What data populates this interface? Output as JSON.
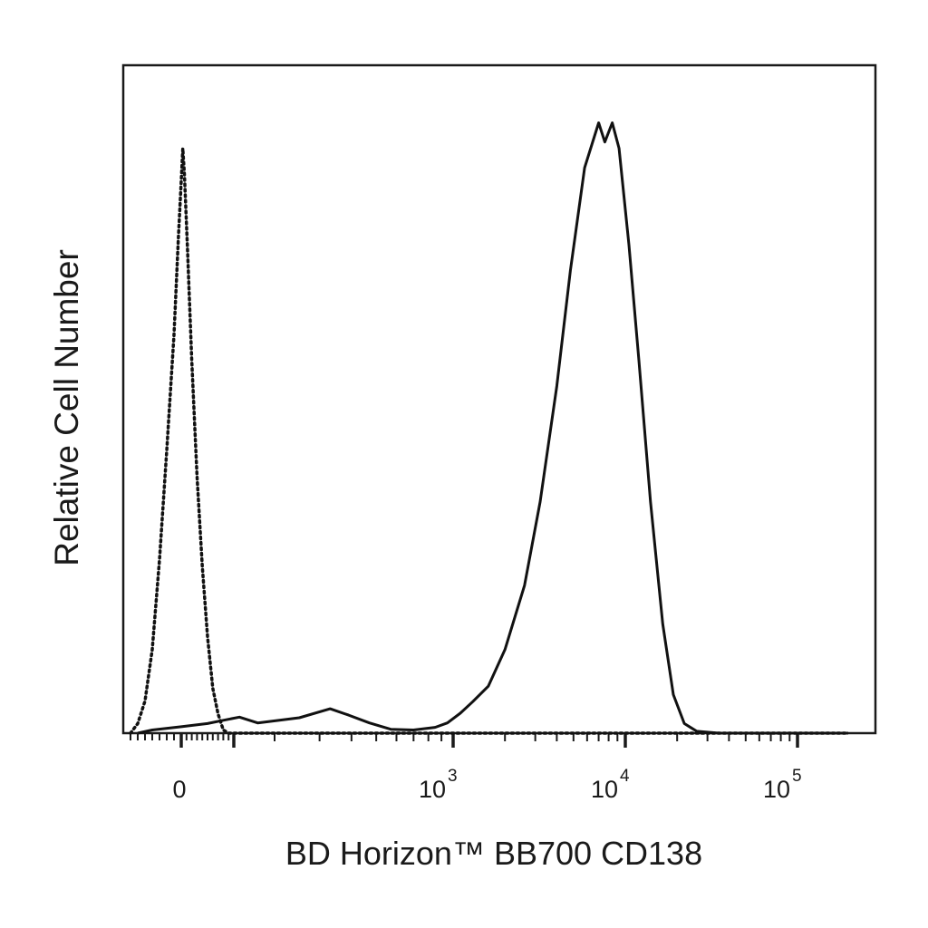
{
  "chart_data": {
    "type": "line",
    "xlabel": "BD Horizon™ BB700 CD138",
    "ylabel": "Relative Cell Number",
    "x_scale": "biexponential",
    "xlim": [
      -80,
      200000
    ],
    "ylim": [
      0,
      100
    ],
    "grid": false,
    "legend": "none",
    "x_ticks": [
      {
        "value": 0,
        "base": "0",
        "exp": ""
      },
      {
        "value": 1000,
        "base": "10",
        "exp": "3"
      },
      {
        "value": 10000,
        "base": "10",
        "exp": "4"
      },
      {
        "value": 100000,
        "base": "10",
        "exp": "5"
      }
    ],
    "series": [
      {
        "style": "solid",
        "points": [
          [
            -60,
            0
          ],
          [
            -40,
            0.5
          ],
          [
            0,
            1.0
          ],
          [
            50,
            1.5
          ],
          [
            80,
            2
          ],
          [
            110,
            2.5
          ],
          [
            150,
            1.6
          ],
          [
            250,
            2.4
          ],
          [
            330,
            3.8
          ],
          [
            390,
            2.8
          ],
          [
            470,
            1.6
          ],
          [
            570,
            0.6
          ],
          [
            700,
            0.5
          ],
          [
            850,
            0.9
          ],
          [
            950,
            1.6
          ],
          [
            1100,
            3.1
          ],
          [
            1300,
            4.9
          ],
          [
            1600,
            7.3
          ],
          [
            2000,
            13
          ],
          [
            2600,
            23
          ],
          [
            3200,
            36
          ],
          [
            4000,
            54
          ],
          [
            4800,
            72
          ],
          [
            5800,
            88
          ],
          [
            7000,
            95
          ],
          [
            7600,
            92
          ],
          [
            8400,
            95
          ],
          [
            9200,
            91
          ],
          [
            10500,
            76
          ],
          [
            12000,
            58
          ],
          [
            14000,
            36
          ],
          [
            16500,
            17
          ],
          [
            19000,
            6
          ],
          [
            22000,
            1.5
          ],
          [
            26000,
            0.3
          ],
          [
            35000,
            0
          ],
          [
            200000,
            0
          ]
        ]
      },
      {
        "style": "dotted",
        "points": [
          [
            -70,
            0
          ],
          [
            -60,
            1.5
          ],
          [
            -50,
            5
          ],
          [
            -40,
            13
          ],
          [
            -30,
            27
          ],
          [
            -20,
            44
          ],
          [
            -10,
            62
          ],
          [
            -4,
            77
          ],
          [
            0,
            86
          ],
          [
            3,
            91
          ],
          [
            6,
            87
          ],
          [
            12,
            75
          ],
          [
            20,
            58
          ],
          [
            30,
            40
          ],
          [
            40,
            26
          ],
          [
            50,
            15
          ],
          [
            60,
            7
          ],
          [
            70,
            3
          ],
          [
            80,
            0.5
          ],
          [
            90,
            0
          ],
          [
            200000,
            0
          ]
        ]
      }
    ]
  }
}
